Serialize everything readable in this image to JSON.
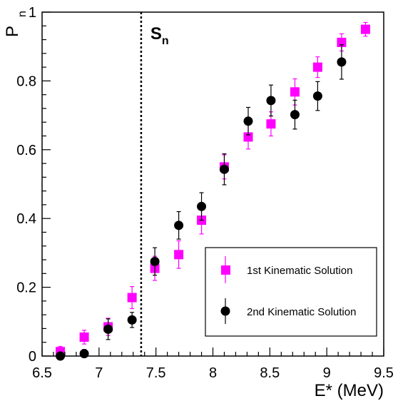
{
  "chart_data": {
    "type": "scatter",
    "title": "",
    "xlabel": "E* (MeV)",
    "ylabel_main": "P",
    "ylabel_sub": "n",
    "xlim": [
      6.5,
      9.5
    ],
    "ylim": [
      0,
      1
    ],
    "x_ticks": [
      "6.5",
      "7",
      "7.5",
      "8",
      "8.5",
      "9",
      "9.5"
    ],
    "y_ticks": [
      "0",
      "0.2",
      "0.4",
      "0.6",
      "0.8",
      "1"
    ],
    "x_tick_values": [
      6.5,
      7,
      7.5,
      8,
      8.5,
      9,
      9.5
    ],
    "y_tick_values": [
      0,
      0.2,
      0.4,
      0.6,
      0.8,
      1
    ],
    "grid": false,
    "legend_position": "bottom-right",
    "annotation": {
      "label": "S",
      "sub": "n",
      "x": 7.37
    },
    "series": [
      {
        "name": "1st Kinematic Solution",
        "marker": "square",
        "color": "#ff00ff",
        "error_color": "#ff00ff",
        "points": [
          {
            "x": 6.66,
            "y": 0.013,
            "err": 0.015
          },
          {
            "x": 6.87,
            "y": 0.055,
            "err": 0.02
          },
          {
            "x": 7.08,
            "y": 0.085,
            "err": 0.025
          },
          {
            "x": 7.29,
            "y": 0.17,
            "err": 0.032
          },
          {
            "x": 7.49,
            "y": 0.255,
            "err": 0.035
          },
          {
            "x": 7.7,
            "y": 0.295,
            "err": 0.04
          },
          {
            "x": 7.9,
            "y": 0.395,
            "err": 0.04
          },
          {
            "x": 8.1,
            "y": 0.55,
            "err": 0.035
          },
          {
            "x": 8.31,
            "y": 0.637,
            "err": 0.035
          },
          {
            "x": 8.51,
            "y": 0.675,
            "err": 0.035
          },
          {
            "x": 8.72,
            "y": 0.768,
            "err": 0.038
          },
          {
            "x": 8.92,
            "y": 0.84,
            "err": 0.03
          },
          {
            "x": 9.13,
            "y": 0.912,
            "err": 0.025
          },
          {
            "x": 9.34,
            "y": 0.95,
            "err": 0.02
          }
        ]
      },
      {
        "name": "2nd Kinematic Solution",
        "marker": "circle",
        "color": "#000000",
        "error_color": "#000000",
        "points": [
          {
            "x": 6.66,
            "y": 0.0,
            "err": 0.008
          },
          {
            "x": 6.87,
            "y": 0.007,
            "err": 0.012
          },
          {
            "x": 7.08,
            "y": 0.078,
            "err": 0.03
          },
          {
            "x": 7.29,
            "y": 0.105,
            "err": 0.022
          },
          {
            "x": 7.49,
            "y": 0.275,
            "err": 0.04
          },
          {
            "x": 7.7,
            "y": 0.38,
            "err": 0.04
          },
          {
            "x": 7.9,
            "y": 0.435,
            "err": 0.04
          },
          {
            "x": 8.1,
            "y": 0.543,
            "err": 0.045
          },
          {
            "x": 8.31,
            "y": 0.683,
            "err": 0.04
          },
          {
            "x": 8.51,
            "y": 0.743,
            "err": 0.045
          },
          {
            "x": 8.72,
            "y": 0.702,
            "err": 0.042
          },
          {
            "x": 8.92,
            "y": 0.756,
            "err": 0.042
          },
          {
            "x": 9.13,
            "y": 0.855,
            "err": 0.05
          }
        ]
      }
    ]
  }
}
